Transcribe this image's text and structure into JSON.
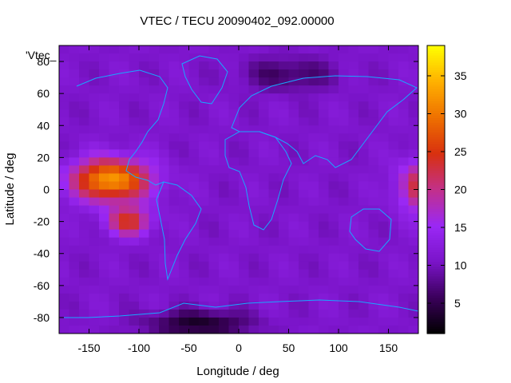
{
  "chart_data": {
    "type": "heatmap",
    "title": "VTEC / TECU 20090402_092.00000",
    "xlabel": "Longitude / deg",
    "ylabel": "Latitude / deg",
    "series_label": "'Vtec_",
    "xlim": [
      -180,
      180
    ],
    "ylim": [
      -90,
      90
    ],
    "x_ticks": [
      -150,
      -100,
      -50,
      0,
      50,
      100,
      150
    ],
    "y_ticks": [
      -80,
      -60,
      -40,
      -20,
      0,
      20,
      40,
      60,
      80
    ],
    "colorbar": {
      "range": [
        1,
        39
      ],
      "ticks": [
        5,
        10,
        15,
        20,
        25,
        30,
        35
      ],
      "palette": [
        "#000000",
        "#3a005a",
        "#7a14c8",
        "#9a28f5",
        "#c2308a",
        "#d83010",
        "#ee7000",
        "#ffb000",
        "#ffff00"
      ]
    },
    "grid_resolution_deg": [
      10,
      5
    ],
    "features": [
      {
        "name": "equatorial-peak-pacific",
        "lon": -128,
        "lat": 6,
        "lon_width": 38,
        "lat_width": 13,
        "value": 22
      },
      {
        "name": "equatorial-peak-south",
        "lon": -110,
        "lat": -20,
        "lon_width": 22,
        "lat_width": 9,
        "value": 13
      },
      {
        "name": "east-limb-anomaly",
        "lon": 185,
        "lat": 2,
        "lon_width": 25,
        "lat_width": 16,
        "value": 13
      },
      {
        "name": "southern-polar-minimum",
        "lon": -40,
        "lat": -84,
        "lon_width": 50,
        "lat_width": 8,
        "value": -8
      },
      {
        "name": "northern-minimum",
        "lon": 50,
        "lat": 72,
        "lon_width": 45,
        "lat_width": 10,
        "value": -5
      }
    ],
    "background_value": 11
  }
}
